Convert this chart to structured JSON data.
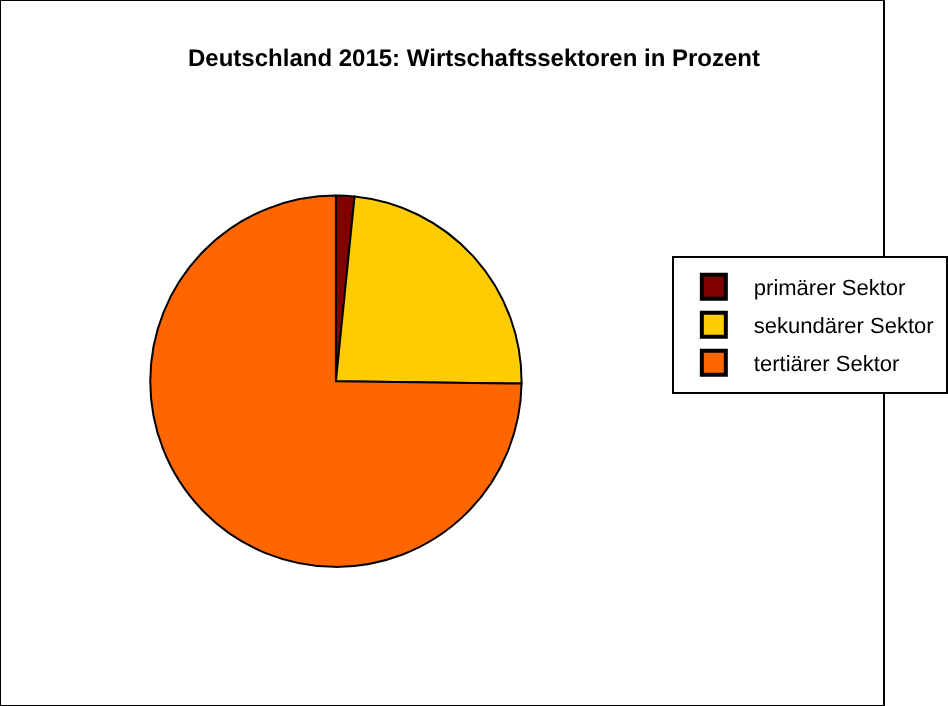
{
  "chart_data": {
    "type": "pie",
    "title": "Deutschland 2015: Wirtschaftssektoren in Prozent",
    "categories": [
      "primärer Sektor",
      "sekundärer Sektor",
      "tertiärer Sektor"
    ],
    "values": [
      1.6,
      23.6,
      74.8
    ],
    "colors": [
      "#800000",
      "#ffcc00",
      "#ff6600"
    ],
    "legend": "right"
  }
}
